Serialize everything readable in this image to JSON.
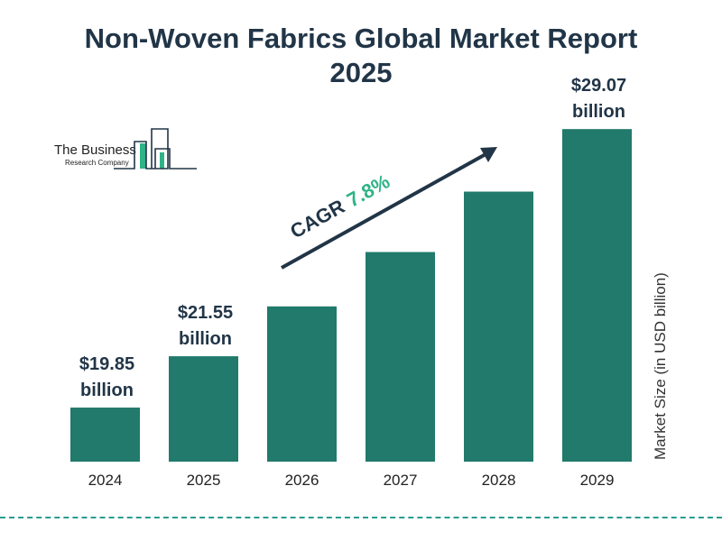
{
  "chart_data": {
    "type": "bar",
    "title": "Non-Woven Fabrics Global Market Report 2025",
    "title_lines": [
      "Non-Woven Fabrics Global Market Report",
      "2025"
    ],
    "categories": [
      "2024",
      "2025",
      "2026",
      "2027",
      "2028",
      "2029"
    ],
    "values": [
      19.85,
      21.55,
      23.2,
      25.0,
      27.0,
      29.07
    ],
    "data_labels": [
      {
        "index": 0,
        "value": "$19.85",
        "unit": "billion"
      },
      {
        "index": 1,
        "value": "$21.55",
        "unit": "billion"
      },
      {
        "index": 5,
        "value": "$29.07",
        "unit": "billion"
      }
    ],
    "xlabel": "",
    "ylabel": "Market Size (in USD billion)",
    "annotation": {
      "label": "CAGR",
      "value": "7.8%"
    },
    "grid": false,
    "bar_color": "#217a6b",
    "accent_color": "#2fb387",
    "text_color": "#213547"
  },
  "logo": {
    "line1": "The Business",
    "line2": "Research Company"
  }
}
